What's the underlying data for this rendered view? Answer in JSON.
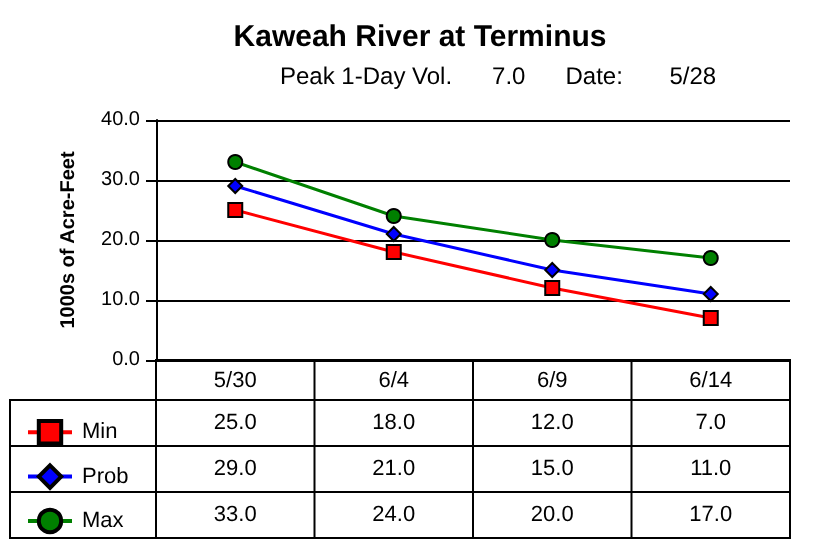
{
  "chart_data": {
    "type": "line",
    "title": "Kaweah River at Terminus",
    "subtitle": "Peak 1-Day Vol.      7.0      Date:       5/28",
    "ylabel": "1000s of Acre-Feet",
    "categories": [
      "5/30",
      "6/4",
      "6/9",
      "6/14"
    ],
    "series": [
      {
        "name": "Min",
        "color": "#ff0000",
        "marker": "square",
        "values": [
          25,
          18,
          12,
          7
        ],
        "value_labels": [
          "25.0",
          "18.0",
          "12.0",
          "7.0"
        ]
      },
      {
        "name": "Prob",
        "color": "#0000ff",
        "marker": "diamond",
        "values": [
          29,
          21,
          15,
          11
        ],
        "value_labels": [
          "29.0",
          "21.0",
          "15.0",
          "11.0"
        ]
      },
      {
        "name": "Max",
        "color": "#008000",
        "marker": "circle",
        "values": [
          33,
          24,
          20,
          17
        ],
        "value_labels": [
          "33.0",
          "24.0",
          "20.0",
          "17.0"
        ]
      }
    ],
    "ylim": [
      0,
      40
    ],
    "yticks": [
      {
        "value": 0,
        "label": "0.0"
      },
      {
        "value": 10,
        "label": "10.0"
      },
      {
        "value": 20,
        "label": "20.0"
      },
      {
        "value": 30,
        "label": "30.0"
      },
      {
        "value": 40,
        "label": "40.0"
      }
    ],
    "grid": "y",
    "legend": "bottom left",
    "line_style": "solid"
  }
}
